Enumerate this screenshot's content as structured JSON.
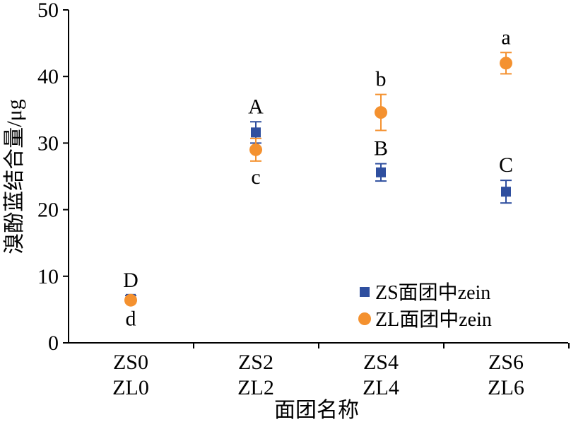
{
  "chart_data": {
    "type": "scatter",
    "ylabel": "溴酚蓝结合量/μg",
    "xlabel": "面团名称",
    "ylim": [
      0,
      50
    ],
    "yticks": [
      0,
      10,
      20,
      30,
      40,
      50
    ],
    "categories": [
      [
        "ZS0",
        "ZL0"
      ],
      [
        "ZS2",
        "ZL2"
      ],
      [
        "ZS4",
        "ZL4"
      ],
      [
        "ZS6",
        "ZL6"
      ]
    ],
    "legend_position": "bottom-right",
    "grid": false,
    "series": [
      {
        "name": "ZS面团中zein",
        "marker": "square",
        "color": "#2f4f9f",
        "values": [
          6.6,
          31.6,
          25.6,
          22.7
        ],
        "errors": [
          0.5,
          1.6,
          1.3,
          1.7
        ],
        "labels": [
          "D",
          "A",
          "B",
          "C"
        ],
        "label_side": [
          "above",
          "above",
          "above",
          "above"
        ]
      },
      {
        "name": "ZL面团中zein",
        "marker": "circle",
        "color": "#f4912f",
        "values": [
          6.4,
          29.0,
          34.6,
          42.0
        ],
        "errors": [
          0.4,
          1.7,
          2.7,
          1.6
        ],
        "labels": [
          "d",
          "c",
          "b",
          "a"
        ],
        "label_side": [
          "below",
          "below",
          "above",
          "above"
        ]
      }
    ]
  }
}
